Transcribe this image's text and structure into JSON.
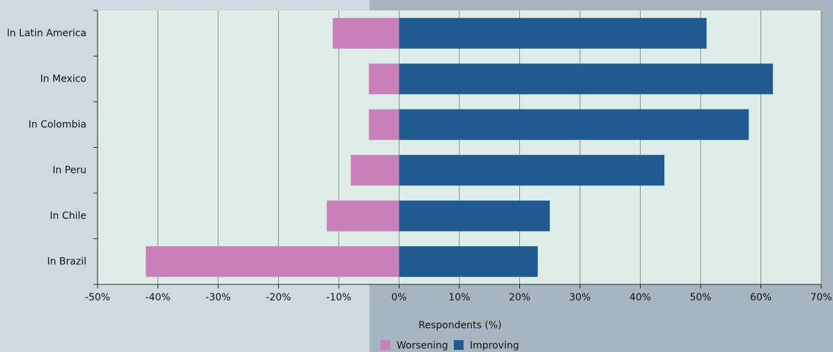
{
  "chart_data": {
    "type": "bar",
    "orientation": "horizontal",
    "categories": [
      "In Latin America",
      "In Mexico",
      "In Colombia",
      "In Peru",
      "In Chile",
      "In Brazil"
    ],
    "series": [
      {
        "name": "Worsening",
        "color": "#c97fb8",
        "values": [
          -11,
          -5,
          -5,
          -8,
          -12,
          -42
        ]
      },
      {
        "name": "Improving",
        "color": "#1f5b8e",
        "values": [
          51,
          62,
          58,
          44,
          25,
          23
        ]
      }
    ],
    "xlabel": "Respondents (%)",
    "xlim": [
      -50,
      70
    ],
    "xticks": [
      {
        "value": -50,
        "label": "-50%"
      },
      {
        "value": -40,
        "label": "-40%"
      },
      {
        "value": -30,
        "label": "-30%"
      },
      {
        "value": -20,
        "label": "-20%"
      },
      {
        "value": -10,
        "label": "-10%"
      },
      {
        "value": 0,
        "label": "0%"
      },
      {
        "value": 10,
        "label": "10%"
      },
      {
        "value": 20,
        "label": "20%"
      },
      {
        "value": 30,
        "label": "30%"
      },
      {
        "value": 40,
        "label": "40%"
      },
      {
        "value": 50,
        "label": "50%"
      },
      {
        "value": 60,
        "label": "60%"
      },
      {
        "value": 70,
        "label": "70%"
      }
    ],
    "grid": true
  }
}
